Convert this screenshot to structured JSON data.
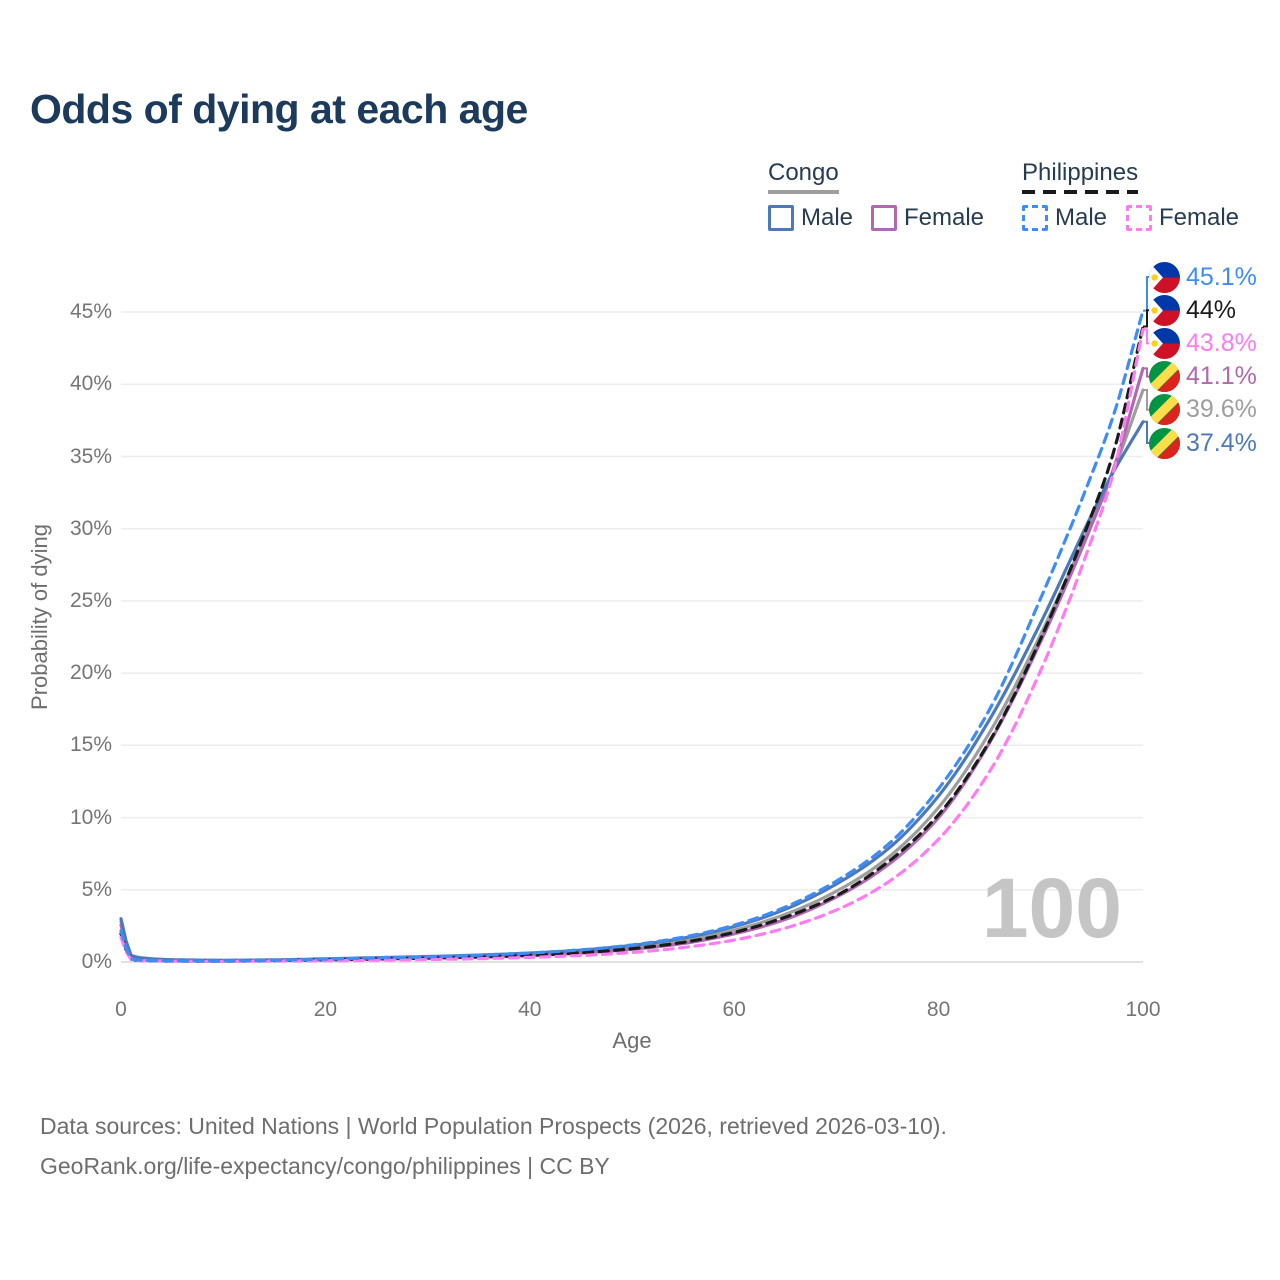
{
  "title": "Odds of dying at each age",
  "legend": {
    "groups": [
      {
        "name": "Congo",
        "color": "#9e9e9e",
        "dash": false,
        "items": [
          {
            "label": "Male",
            "color": "#4e79b8",
            "dash": false
          },
          {
            "label": "Female",
            "color": "#b069b0",
            "dash": false
          }
        ]
      },
      {
        "name": "Philippines",
        "color": "#1a1a1a",
        "dash": true,
        "items": [
          {
            "label": "Male",
            "color": "#3e8df6",
            "dash": true
          },
          {
            "label": "Female",
            "color": "#fd7cf3",
            "dash": true
          }
        ]
      }
    ]
  },
  "chart_data": {
    "type": "line",
    "title": "Odds of dying at each age",
    "xlabel": "Age",
    "ylabel": "Probability of dying",
    "xlim": [
      0,
      100
    ],
    "ylim": [
      0,
      47
    ],
    "x_ticks": [
      0,
      20,
      40,
      60,
      80,
      100
    ],
    "y_ticks_percent": [
      0,
      5,
      10,
      15,
      20,
      25,
      30,
      35,
      40,
      45
    ],
    "grid": "horizontal",
    "legend_position": "top-right",
    "current_age_annotation": "100",
    "ages": [
      0,
      1,
      3,
      5,
      10,
      15,
      20,
      25,
      30,
      35,
      40,
      45,
      50,
      55,
      60,
      65,
      70,
      75,
      80,
      85,
      90,
      95,
      97,
      100
    ],
    "series": [
      {
        "key": "congo-both",
        "name": "Congo — Both sexes",
        "country": "congo",
        "sex": "both",
        "color": "#9e9e9e",
        "dash": false,
        "end_label": "39.6%",
        "values": [
          2.8,
          0.4,
          0.2,
          0.14,
          0.11,
          0.13,
          0.18,
          0.25,
          0.32,
          0.41,
          0.53,
          0.72,
          1.0,
          1.45,
          2.2,
          3.3,
          4.9,
          7.2,
          10.7,
          15.9,
          22.7,
          30.5,
          33.8,
          39.6
        ]
      },
      {
        "key": "congo-female",
        "name": "Congo — Female",
        "country": "congo",
        "sex": "female",
        "color": "#b069b0",
        "dash": false,
        "end_label": "41.1%",
        "values": [
          2.55,
          0.36,
          0.18,
          0.13,
          0.1,
          0.11,
          0.15,
          0.2,
          0.26,
          0.34,
          0.45,
          0.62,
          0.88,
          1.28,
          1.95,
          2.95,
          4.5,
          6.7,
          10.0,
          15.2,
          22.2,
          30.3,
          33.9,
          41.1
        ]
      },
      {
        "key": "congo-male",
        "name": "Congo — Male",
        "country": "congo",
        "sex": "male",
        "color": "#4e79b8",
        "dash": false,
        "end_label": "37.4%",
        "values": [
          3.0,
          0.45,
          0.22,
          0.16,
          0.12,
          0.15,
          0.22,
          0.3,
          0.38,
          0.48,
          0.62,
          0.82,
          1.15,
          1.65,
          2.45,
          3.65,
          5.4,
          7.8,
          11.5,
          16.8,
          23.5,
          31.0,
          33.8,
          37.4
        ]
      },
      {
        "key": "philippines-both",
        "name": "Philippines — Both sexes",
        "country": "philippines",
        "sex": "both",
        "color": "#1a1a1a",
        "dash": true,
        "end_label": "44%",
        "values": [
          1.95,
          0.17,
          0.09,
          0.07,
          0.06,
          0.1,
          0.15,
          0.21,
          0.27,
          0.35,
          0.46,
          0.64,
          0.92,
          1.36,
          2.05,
          3.1,
          4.6,
          6.9,
          10.2,
          15.3,
          22.4,
          31.0,
          35.0,
          44.0
        ]
      },
      {
        "key": "philippines-female",
        "name": "Philippines — Female",
        "country": "philippines",
        "sex": "female",
        "color": "#fd7cf3",
        "dash": true,
        "end_label": "43.8%",
        "values": [
          1.7,
          0.15,
          0.08,
          0.06,
          0.05,
          0.07,
          0.09,
          0.12,
          0.17,
          0.23,
          0.32,
          0.45,
          0.66,
          1.0,
          1.52,
          2.35,
          3.6,
          5.5,
          8.5,
          13.2,
          20.2,
          29.3,
          33.6,
          43.8
        ]
      },
      {
        "key": "philippines-male",
        "name": "Philippines — Male",
        "country": "philippines",
        "sex": "male",
        "color": "#3e8df6",
        "dash": true,
        "end_label": "45.1%",
        "values": [
          2.15,
          0.2,
          0.1,
          0.08,
          0.07,
          0.12,
          0.2,
          0.28,
          0.36,
          0.47,
          0.62,
          0.84,
          1.18,
          1.72,
          2.55,
          3.8,
          5.6,
          8.1,
          12.0,
          17.5,
          25.2,
          33.8,
          37.6,
          45.1
        ]
      }
    ]
  },
  "footer": {
    "line1": "Data sources: United Nations | World Population Prospects (2026, retrieved 2026-03-10).",
    "line2": "GeoRank.org/life-expectancy/congo/philippines | CC BY"
  }
}
